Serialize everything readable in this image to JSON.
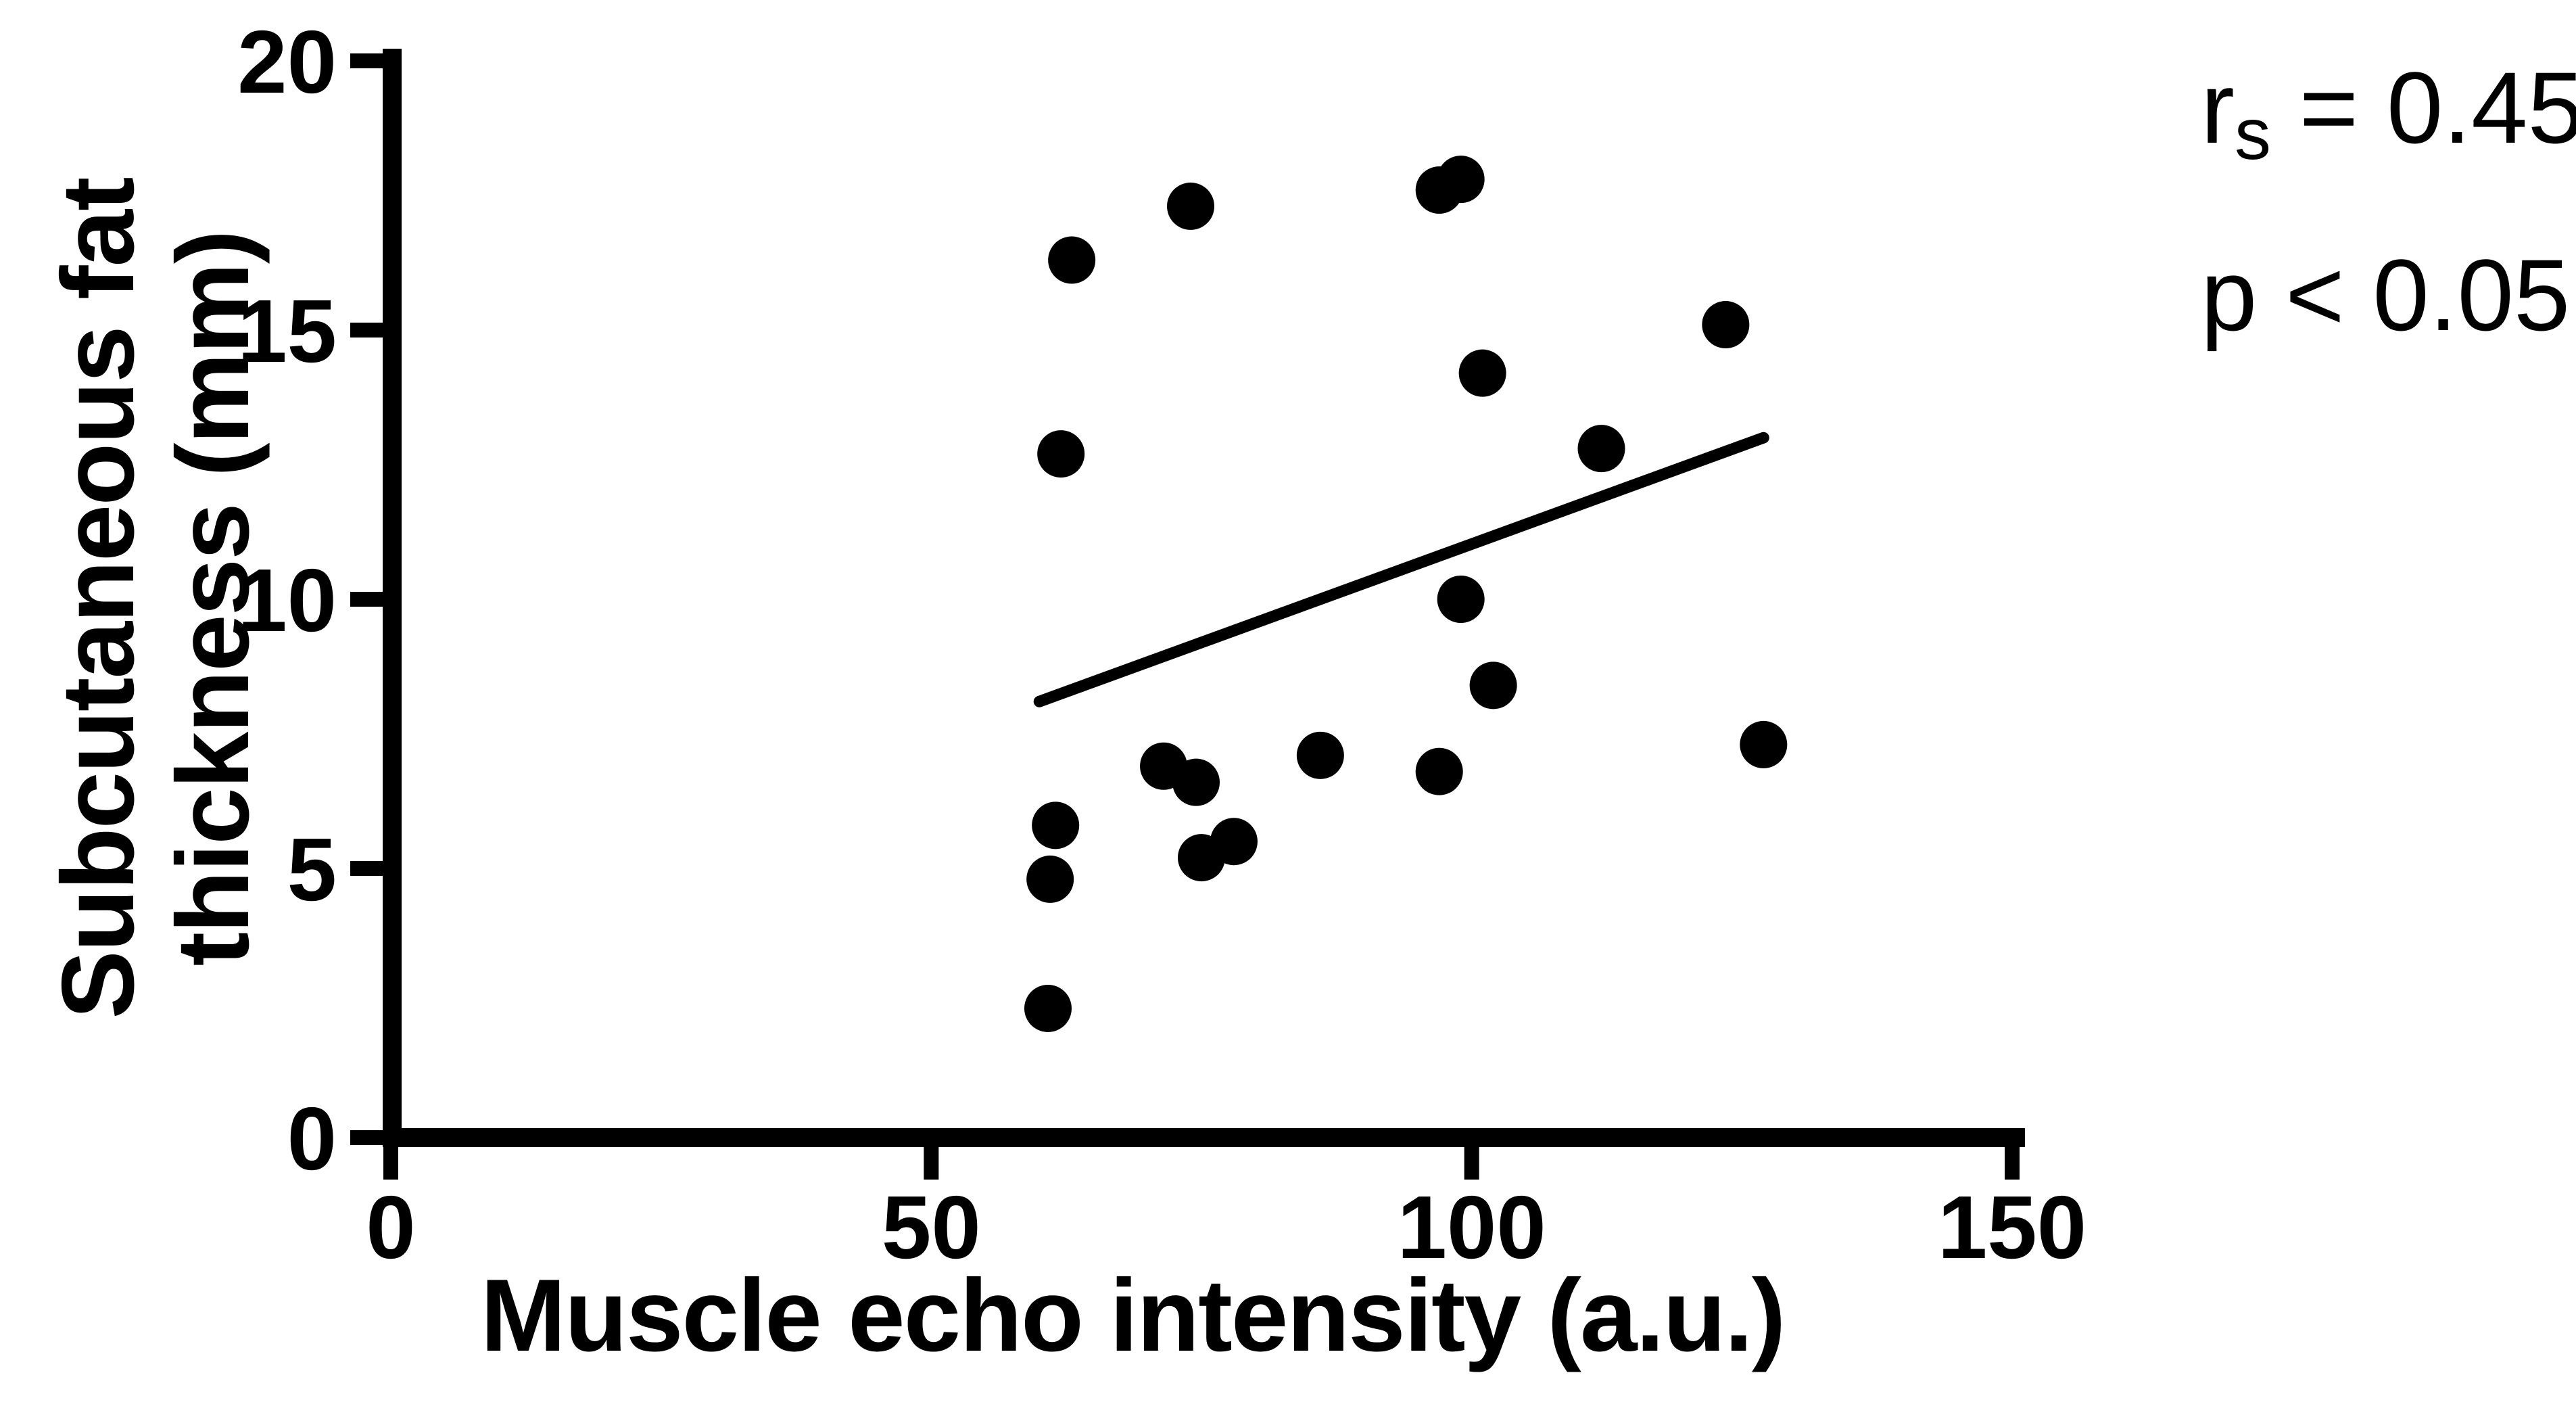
{
  "figure": {
    "background": "#ffffff",
    "ink_color": "#000000"
  },
  "annotation": {
    "r_base": "r",
    "r_sub": "s",
    "r_value": " = 0.45",
    "p_line": "p < 0.05"
  },
  "chart_data": {
    "type": "scatter",
    "title": "",
    "xlabel": "Muscle echo intensity (a.u.)",
    "ylabel_line1": "Subcutaneous fat",
    "ylabel_line2": "thickness (mm)",
    "xlim": [
      0,
      150
    ],
    "ylim": [
      0,
      20
    ],
    "x_ticks": [
      0,
      50,
      100,
      150
    ],
    "y_ticks": [
      0,
      5,
      10,
      15,
      20
    ],
    "grid": false,
    "legend_position": "none",
    "marker_color": "#000000",
    "marker_shape": "circle",
    "annotation_lines": [
      "rs = 0.45",
      "p < 0.05"
    ],
    "points": [
      {
        "x": 60.8,
        "y": 2.4
      },
      {
        "x": 61,
        "y": 4.8
      },
      {
        "x": 61.5,
        "y": 5.8
      },
      {
        "x": 62,
        "y": 12.7
      },
      {
        "x": 63,
        "y": 16.3
      },
      {
        "x": 71.5,
        "y": 6.9
      },
      {
        "x": 74.5,
        "y": 6.6
      },
      {
        "x": 74,
        "y": 17.3
      },
      {
        "x": 75,
        "y": 5.2
      },
      {
        "x": 78,
        "y": 5.5
      },
      {
        "x": 86,
        "y": 7.1
      },
      {
        "x": 97,
        "y": 6.8
      },
      {
        "x": 97,
        "y": 17.6
      },
      {
        "x": 99,
        "y": 17.8
      },
      {
        "x": 99,
        "y": 10.0
      },
      {
        "x": 101,
        "y": 14.2
      },
      {
        "x": 102,
        "y": 8.4
      },
      {
        "x": 112,
        "y": 12.8
      },
      {
        "x": 123.5,
        "y": 15.1
      },
      {
        "x": 127,
        "y": 7.3
      }
    ],
    "trendline": {
      "x1": 60,
      "y1": 8.1,
      "x2": 127,
      "y2": 13.0
    }
  }
}
